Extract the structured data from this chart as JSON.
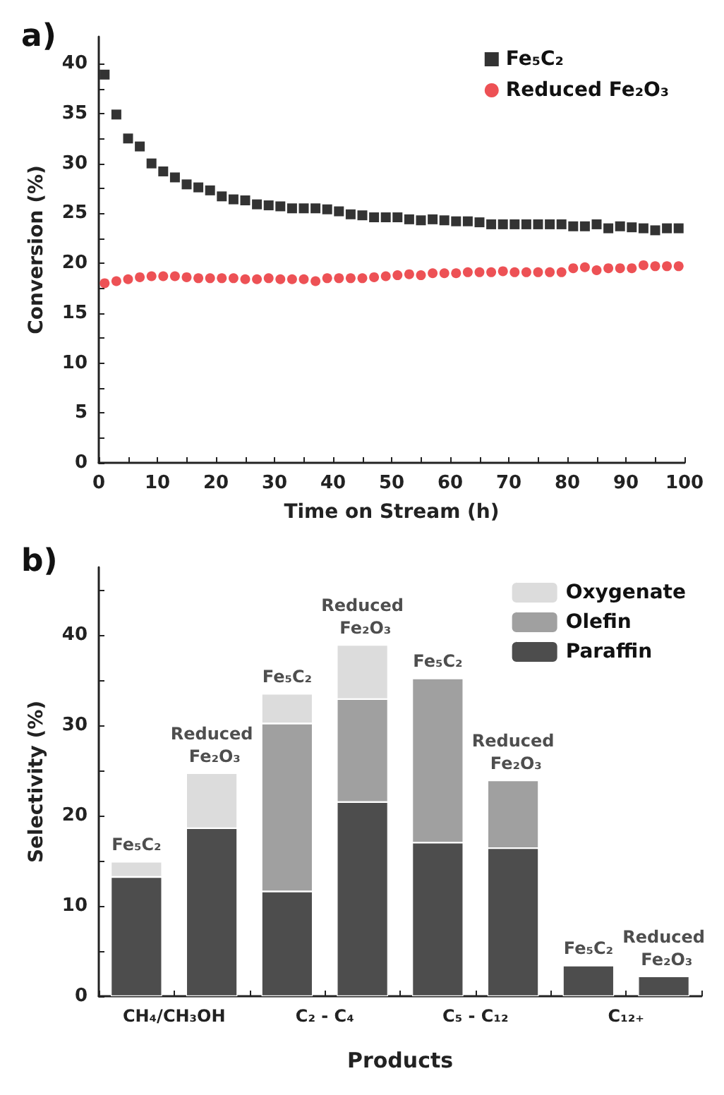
{
  "chart_data": [
    {
      "type": "scatter",
      "title": "a)",
      "xlabel": "Time on Stream (h)",
      "ylabel": "Conversion (%)",
      "xlim": [
        0,
        100
      ],
      "ylim": [
        0,
        42.7
      ],
      "xticks": [
        0,
        {
          "value": 5,
          "label": null
        },
        10,
        {
          "value": 15,
          "label": null
        },
        20,
        {
          "value": 25,
          "label": null
        },
        30,
        {
          "value": 35,
          "label": null
        },
        40,
        {
          "value": 45,
          "label": null
        },
        50,
        {
          "value": 55,
          "label": null
        },
        60,
        {
          "value": 65,
          "label": null
        },
        70,
        {
          "value": 75,
          "label": null
        },
        80,
        {
          "value": 85,
          "label": null
        },
        90,
        {
          "value": 95,
          "label": null
        },
        100
      ],
      "yticks": [
        0,
        {
          "value": 2.5,
          "label": null
        },
        5,
        {
          "value": 7.5,
          "label": null
        },
        10,
        {
          "value": 12.5,
          "label": null
        },
        15,
        {
          "value": 17.5,
          "label": null
        },
        20,
        {
          "value": 22.5,
          "label": null
        },
        25,
        {
          "value": 27.5,
          "label": null
        },
        30,
        {
          "value": 32.5,
          "label": null
        },
        35,
        {
          "value": 37.5,
          "label": null
        },
        40
      ],
      "x": [
        1,
        3,
        5,
        7,
        9,
        11,
        13,
        15,
        17,
        19,
        21,
        23,
        25,
        27,
        29,
        31,
        33,
        35,
        37,
        39,
        41,
        43,
        45,
        47,
        49,
        51,
        53,
        55,
        57,
        59,
        61,
        63,
        65,
        67,
        69,
        71,
        73,
        75,
        77,
        79,
        81,
        83,
        85,
        87,
        89,
        91,
        93,
        95,
        97,
        99
      ],
      "legend": "top right",
      "grid": false,
      "series": [
        {
          "name": "Fe₅C₂",
          "color": "#000000",
          "marker": "square",
          "values": [
            38.9,
            34.9,
            32.5,
            31.7,
            30.0,
            29.2,
            28.6,
            27.9,
            27.6,
            27.3,
            26.7,
            26.4,
            26.3,
            25.9,
            25.8,
            25.7,
            25.5,
            25.5,
            25.5,
            25.4,
            25.2,
            24.9,
            24.8,
            24.6,
            24.6,
            24.6,
            24.4,
            24.3,
            24.4,
            24.3,
            24.2,
            24.2,
            24.1,
            23.9,
            23.9,
            23.9,
            23.9,
            23.9,
            23.9,
            23.9,
            23.7,
            23.7,
            23.9,
            23.5,
            23.7,
            23.6,
            23.5,
            23.3,
            23.5,
            23.5
          ]
        },
        {
          "name": "Reduced Fe₂O₃",
          "color": "#e8262a",
          "marker": "circle",
          "values": [
            18.0,
            18.2,
            18.4,
            18.6,
            18.7,
            18.7,
            18.7,
            18.6,
            18.5,
            18.5,
            18.5,
            18.5,
            18.4,
            18.4,
            18.5,
            18.4,
            18.4,
            18.4,
            18.2,
            18.5,
            18.5,
            18.5,
            18.5,
            18.6,
            18.7,
            18.8,
            18.9,
            18.8,
            19.0,
            19.0,
            19.0,
            19.1,
            19.1,
            19.1,
            19.2,
            19.1,
            19.1,
            19.1,
            19.1,
            19.1,
            19.5,
            19.6,
            19.3,
            19.5,
            19.5,
            19.5,
            19.8,
            19.7,
            19.7,
            19.7
          ]
        }
      ]
    },
    {
      "type": "bar",
      "title": "b)",
      "xlabel": "Products",
      "ylabel": "Selectivity (%)",
      "stacked": true,
      "ylim": [
        0,
        47.5
      ],
      "tick_labels": "y",
      "yticks": [
        0,
        {
          "value": 5,
          "label": null
        },
        10,
        {
          "value": 15,
          "label": null
        },
        20,
        {
          "value": 25,
          "label": null
        },
        30,
        {
          "value": 35,
          "label": null
        },
        40,
        {
          "value": 45,
          "label": null
        }
      ],
      "categories": [
        "Fe₅C₂",
        "Reduced Fe₂O₃",
        "Fe₅C₂",
        "Reduced Fe₂O₃",
        "Fe₅C₂",
        "Reduced Fe₂O₃",
        "Fe₅C₂",
        "Reduced Fe₂O₃"
      ],
      "annotations": [
        "CH₄/CH₃OH",
        "C₂ - C₄",
        "C₅ - C₁₂",
        "C₁₂₊"
      ],
      "legend": "top right",
      "grid": false,
      "series": [
        {
          "name": "Paraffin",
          "color": "#4d4d4d",
          "values": [
            13.2,
            18.6,
            11.6,
            21.5,
            17.0,
            16.4,
            3.4,
            2.2
          ]
        },
        {
          "name": "Olefin",
          "color": "#a0a0a0",
          "values": [
            null,
            null,
            18.6,
            11.4,
            18.2,
            7.5,
            null,
            null
          ]
        },
        {
          "name": "Oxygenate",
          "color": "#dcdcdc",
          "values": [
            1.7,
            6.1,
            3.3,
            6.0,
            null,
            null,
            null,
            null
          ]
        }
      ]
    }
  ]
}
